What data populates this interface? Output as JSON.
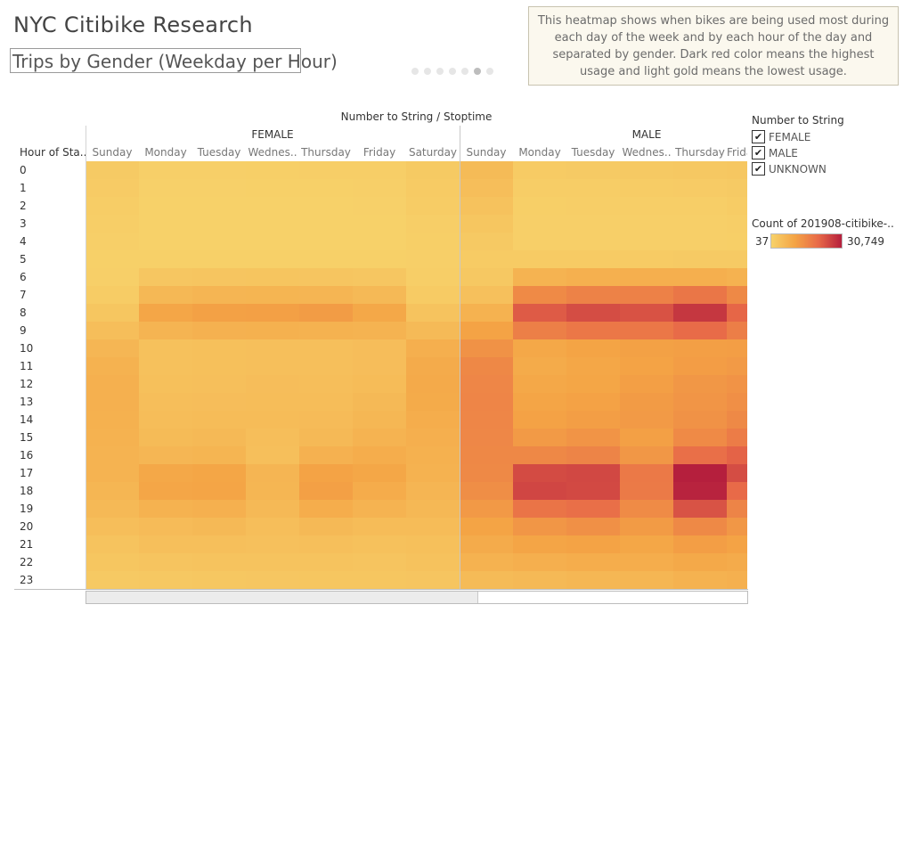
{
  "dashboard": {
    "title": "NYC Citibike Research",
    "subtitle": "Trips by Gender (Weekday per Hour)",
    "story_points": 7,
    "active_point": 6,
    "description": "This heatmap shows when bikes are being used most during each day of the week and by each hour of the day and separated by gender. Dark red color means the highest usage and light gold means the lowest usage."
  },
  "legend": {
    "title": "Number to String",
    "items": [
      {
        "label": "FEMALE",
        "checked": true
      },
      {
        "label": "MALE",
        "checked": true
      },
      {
        "label": "UNKNOWN",
        "checked": true
      }
    ],
    "color_title": "Count of 201908-citibike-..",
    "color_min": "37",
    "color_max": "30,749",
    "colors": [
      "#f7d26a",
      "#f4a445",
      "#e86a48",
      "#b51f3d"
    ]
  },
  "chart_data": {
    "type": "heatmap",
    "column_axis_title": "Number to String  /  Stoptime",
    "row_axis_title": "Hour of Sta..",
    "rows": [
      "0",
      "1",
      "2",
      "3",
      "4",
      "5",
      "6",
      "7",
      "8",
      "9",
      "10",
      "11",
      "12",
      "13",
      "14",
      "15",
      "16",
      "17",
      "18",
      "19",
      "20",
      "21",
      "22",
      "23"
    ],
    "groups": [
      {
        "name": "FEMALE",
        "columns": [
          "Sunday",
          "Monday",
          "Tuesday",
          "Wednes..",
          "Thursday",
          "Friday",
          "Saturday"
        ],
        "values": [
          [
            1800,
            600,
            700,
            800,
            900,
            1000,
            1900
          ],
          [
            1500,
            400,
            400,
            500,
            500,
            600,
            1600
          ],
          [
            1200,
            300,
            300,
            300,
            300,
            400,
            1300
          ],
          [
            900,
            200,
            200,
            200,
            200,
            300,
            1000
          ],
          [
            700,
            200,
            200,
            200,
            200,
            200,
            800
          ],
          [
            500,
            500,
            500,
            500,
            500,
            500,
            600
          ],
          [
            700,
            2600,
            2900,
            3000,
            2900,
            2600,
            1000
          ],
          [
            1300,
            5800,
            6500,
            6600,
            6400,
            5600,
            1700
          ],
          [
            2700,
            9800,
            10800,
            10900,
            11600,
            9400,
            3300
          ],
          [
            4400,
            6800,
            7300,
            7400,
            7200,
            7000,
            5300
          ],
          [
            6200,
            3900,
            4100,
            4300,
            4300,
            4600,
            7900
          ],
          [
            7200,
            3800,
            4100,
            4200,
            4200,
            4600,
            8700
          ],
          [
            7500,
            4100,
            4300,
            4600,
            4500,
            5000,
            9000
          ],
          [
            7600,
            4400,
            4600,
            4800,
            4700,
            5500,
            8800
          ],
          [
            7400,
            4700,
            4900,
            5000,
            5100,
            6000,
            8300
          ],
          [
            7200,
            5200,
            5700,
            4500,
            5600,
            6900,
            7900
          ],
          [
            7000,
            6200,
            6600,
            4200,
            7300,
            8200,
            7400
          ],
          [
            7000,
            9400,
            9900,
            6400,
            10500,
            9600,
            7100
          ],
          [
            6300,
            9800,
            10100,
            6300,
            11000,
            8500,
            6500
          ],
          [
            5600,
            7100,
            7600,
            5700,
            8300,
            6900,
            5800
          ],
          [
            4500,
            5100,
            5600,
            4500,
            5600,
            5000,
            5000
          ],
          [
            3400,
            4200,
            4300,
            4000,
            4300,
            3800,
            4100
          ],
          [
            2800,
            3200,
            3300,
            3300,
            3400,
            3100,
            3500
          ],
          [
            2000,
            2300,
            2500,
            2600,
            2700,
            2800,
            2900
          ]
        ]
      },
      {
        "name": "MALE",
        "columns": [
          "Sunday",
          "Monday",
          "Tuesday",
          "Wednes..",
          "Thursday",
          "Friday"
        ],
        "values": [
          [
            5200,
            1600,
            1800,
            2000,
            2200,
            2400
          ],
          [
            4400,
            1100,
            1200,
            1300,
            1500,
            1800
          ],
          [
            3600,
            800,
            900,
            900,
            1000,
            1300
          ],
          [
            2800,
            600,
            600,
            600,
            700,
            1000
          ],
          [
            2100,
            600,
            600,
            600,
            700,
            800
          ],
          [
            1700,
            1700,
            1700,
            1700,
            1800,
            1800
          ],
          [
            2200,
            7000,
            7600,
            7900,
            7800,
            7200
          ],
          [
            4000,
            14800,
            16200,
            16500,
            18400,
            15000
          ],
          [
            7200,
            22500,
            24500,
            23800,
            27500,
            21000
          ],
          [
            10500,
            16800,
            18200,
            18300,
            20300,
            17000
          ],
          [
            13500,
            9400,
            10200,
            10800,
            11200,
            11400
          ],
          [
            15200,
            8800,
            9700,
            10400,
            11500,
            12000
          ],
          [
            15600,
            9400,
            9900,
            11200,
            12500,
            13200
          ],
          [
            15800,
            10000,
            10600,
            11800,
            13000,
            14000
          ],
          [
            15600,
            10600,
            11300,
            12100,
            13400,
            15000
          ],
          [
            15400,
            12000,
            13100,
            11000,
            14800,
            17400
          ],
          [
            15300,
            15200,
            16000,
            12600,
            19600,
            21400
          ],
          [
            15100,
            24800,
            25200,
            17800,
            30749,
            24500
          ],
          [
            14200,
            25400,
            25000,
            17600,
            30200,
            20500
          ],
          [
            12200,
            18800,
            19600,
            14600,
            23700,
            16000
          ],
          [
            10300,
            12800,
            13800,
            11900,
            15100,
            12600
          ],
          [
            8700,
            10000,
            10400,
            9600,
            11400,
            10400
          ],
          [
            7100,
            7800,
            8300,
            8300,
            9100,
            8700
          ],
          [
            5200,
            5500,
            6000,
            6300,
            7200,
            7600
          ]
        ]
      }
    ],
    "min": 37,
    "max": 30749
  }
}
